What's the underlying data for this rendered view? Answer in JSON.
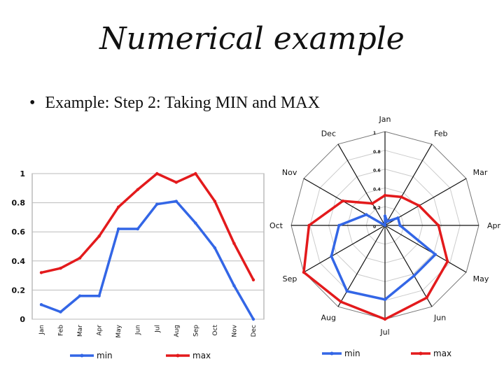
{
  "slide": {
    "title": "Numerical example",
    "bullet": "Example: Step 2: Taking MIN and MAX"
  },
  "chart_data": [
    {
      "type": "line",
      "categories": [
        "Jan",
        "Feb",
        "Mar",
        "Apr",
        "May",
        "Jun",
        "Jul",
        "Aug",
        "Sep",
        "Oct",
        "Nov",
        "Dec"
      ],
      "series": [
        {
          "name": "min",
          "color": "#3366e6",
          "values": [
            0.1,
            0.05,
            0.16,
            0.16,
            0.62,
            0.62,
            0.79,
            0.81,
            0.66,
            0.49,
            0.23,
            0.0
          ]
        },
        {
          "name": "max",
          "color": "#e31a1c",
          "values": [
            0.32,
            0.35,
            0.42,
            0.57,
            0.77,
            0.89,
            1.0,
            0.94,
            1.0,
            0.81,
            0.52,
            0.27
          ]
        }
      ],
      "y_ticks": [
        "0",
        "0.2",
        "0.4",
        "0.6",
        "0.8",
        "1"
      ],
      "ylim": [
        0,
        1
      ],
      "grid": true,
      "legend": "bottom"
    },
    {
      "type": "radar",
      "categories": [
        "Jan",
        "Feb",
        "Mar",
        "Apr",
        "May",
        "Jun",
        "Jul",
        "Aug",
        "Sep",
        "Oct",
        "Nov",
        "Dec"
      ],
      "series": [
        {
          "name": "min",
          "color": "#3366e6",
          "values": [
            0.1,
            0.05,
            0.16,
            0.16,
            0.62,
            0.62,
            0.79,
            0.81,
            0.66,
            0.49,
            0.23,
            0.0
          ]
        },
        {
          "name": "max",
          "color": "#e31a1c",
          "values": [
            0.32,
            0.35,
            0.42,
            0.57,
            0.77,
            0.89,
            1.0,
            0.94,
            1.0,
            0.81,
            0.52,
            0.27
          ]
        }
      ],
      "r_ticks": [
        "0",
        "0.2",
        "0.4",
        "0.6",
        "0.8",
        "1"
      ],
      "rlim": [
        0,
        1
      ],
      "grid": true,
      "legend": "bottom"
    }
  ]
}
